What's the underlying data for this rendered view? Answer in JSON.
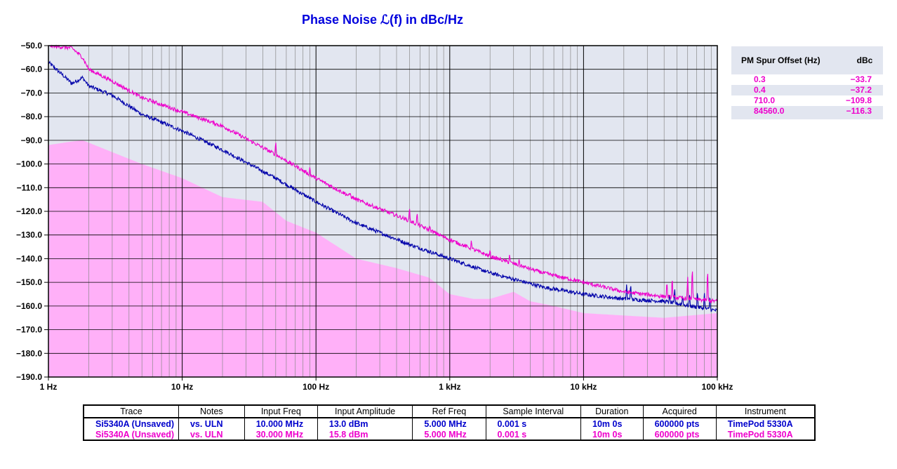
{
  "chart_data": {
    "type": "line",
    "title": "Phase Noise ℒ(f) in dBc/Hz",
    "x_scale": "log",
    "xlim": [
      1,
      100000
    ],
    "ylim": [
      -190,
      -50
    ],
    "grid": true,
    "x_ticks": [
      1,
      10,
      100,
      1000,
      10000,
      100000
    ],
    "x_tick_labels": [
      "1 Hz",
      "10 Hz",
      "100 Hz",
      "1 kHz",
      "10 kHz",
      "100 kHz"
    ],
    "y_ticks": [
      -50,
      -60,
      -70,
      -80,
      -90,
      -100,
      -110,
      -120,
      -130,
      -140,
      -150,
      -160,
      -170,
      -180,
      -190
    ],
    "y_tick_labels": [
      "−50.0",
      "−60.0",
      "−70.0",
      "−80.0",
      "−90.0",
      "−100.0",
      "−110.0",
      "−120.0",
      "−130.0",
      "−140.0",
      "−150.0",
      "−160.0",
      "−170.0",
      "−180.0",
      "−190.0"
    ],
    "colors": {
      "background": "#e2e6f0",
      "grid": "#000000",
      "series_0": "#0000aa",
      "series_1": "#ee00cc",
      "noise_floor": "#ffb0f8"
    },
    "noise_floor": {
      "x": [
        1,
        1.5,
        1.8,
        2,
        3,
        5,
        10,
        20,
        40,
        60,
        100,
        200,
        400,
        700,
        1000,
        1500,
        2000,
        3000,
        4000,
        6000,
        10000,
        20000,
        40000,
        100000
      ],
      "y": [
        -92,
        -90.5,
        -90,
        -91,
        -95,
        -100,
        -106,
        -114,
        -116,
        -124,
        -129,
        -140,
        -144,
        -148,
        -155,
        -157,
        -157,
        -154,
        -158,
        -160,
        -163,
        -164,
        -165,
        -163
      ]
    },
    "series": [
      {
        "x": [
          1,
          1.5,
          1.8,
          2,
          3,
          5,
          10,
          20,
          50,
          100,
          200,
          500,
          1000,
          2000,
          5000,
          10000,
          20000,
          40000,
          100000
        ],
        "y": [
          -57,
          -66,
          -63.5,
          -67,
          -71,
          -79,
          -86,
          -94,
          -106,
          -116,
          -125,
          -134,
          -140,
          -146,
          -152,
          -155,
          -157,
          -158,
          -162
        ],
        "spurs": [
          {
            "x": 21000,
            "y": -150
          },
          {
            "x": 22500,
            "y": -150
          },
          {
            "x": 42000,
            "y": -158
          },
          {
            "x": 44000,
            "y": -155
          },
          {
            "x": 48000,
            "y": -152
          },
          {
            "x": 55000,
            "y": -155
          },
          {
            "x": 62000,
            "y": -155
          },
          {
            "x": 71000,
            "y": -153
          },
          {
            "x": 80000,
            "y": -154
          },
          {
            "x": 88000,
            "y": -155
          }
        ]
      },
      {
        "x": [
          1,
          1.5,
          1.8,
          2,
          3,
          5,
          10,
          20,
          50,
          100,
          200,
          500,
          1000,
          2000,
          5000,
          10000,
          20000,
          40000,
          100000
        ],
        "y": [
          -50,
          -51,
          -55,
          -60,
          -65,
          -72,
          -78,
          -84,
          -96,
          -106,
          -115,
          -124,
          -132,
          -139,
          -146,
          -150,
          -154,
          -156,
          -158
        ],
        "spurs": [
          {
            "x": 50,
            "y": -90
          },
          {
            "x": 90,
            "y": -101
          },
          {
            "x": 180,
            "y": -112
          },
          {
            "x": 300,
            "y": -120
          },
          {
            "x": 400,
            "y": -121
          },
          {
            "x": 500,
            "y": -118
          },
          {
            "x": 570,
            "y": -120
          },
          {
            "x": 710,
            "y": -126
          },
          {
            "x": 1450,
            "y": -132
          },
          {
            "x": 2000,
            "y": -136
          },
          {
            "x": 2800,
            "y": -138
          },
          {
            "x": 3300,
            "y": -140
          },
          {
            "x": 42000,
            "y": -149
          },
          {
            "x": 46000,
            "y": -147
          },
          {
            "x": 60000,
            "y": -147
          },
          {
            "x": 65000,
            "y": -142
          },
          {
            "x": 84560,
            "y": -143
          }
        ]
      }
    ]
  },
  "spur_table": {
    "header_offset": "PM Spur Offset (Hz)",
    "header_dbc": "dBc",
    "rows": [
      {
        "offset": "0.3",
        "dbc": "−33.7"
      },
      {
        "offset": "0.4",
        "dbc": "−37.2"
      },
      {
        "offset": "710.0",
        "dbc": "−109.8"
      },
      {
        "offset": "84560.0",
        "dbc": "−116.3"
      }
    ]
  },
  "info_table": {
    "headers": [
      "Trace",
      "Notes",
      "Input Freq",
      "Input Amplitude",
      "Ref Freq",
      "Sample Interval",
      "Duration",
      "Acquired",
      "Instrument"
    ],
    "rows": [
      [
        "Si5340A (Unsaved)",
        "vs. ULN",
        "10.000 MHz",
        "13.0 dBm",
        "5.000 MHz",
        "0.001 s",
        "10m 0s",
        "600000 pts",
        "TimePod 5330A"
      ],
      [
        "Si5340A (Unsaved)",
        "vs. ULN",
        "30.000 MHz",
        "15.8 dBm",
        "5.000 MHz",
        "0.001 s",
        "10m 0s",
        "600000 pts",
        "TimePod 5330A"
      ]
    ]
  }
}
